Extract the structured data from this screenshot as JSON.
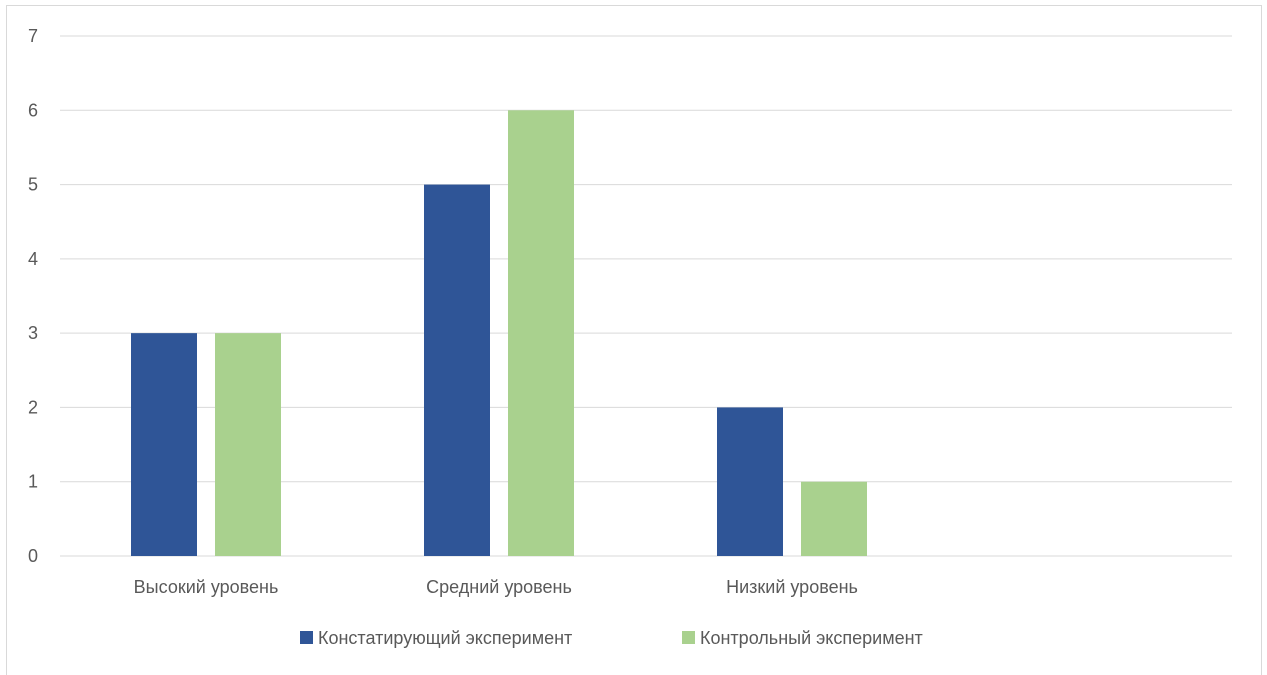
{
  "chart_data": {
    "type": "bar",
    "categories": [
      "Высокий уровень",
      "Средний уровень",
      "Низкий уровень"
    ],
    "series": [
      {
        "name": "Констатирующий эксперимент",
        "values": [
          3,
          5,
          2
        ],
        "color": "#2f5597"
      },
      {
        "name": "Контрольный эксперимент",
        "values": [
          3,
          6,
          1
        ],
        "color": "#a9d18e"
      }
    ],
    "ylim": [
      0,
      7
    ],
    "yticks": [
      0,
      1,
      2,
      3,
      4,
      5,
      6,
      7
    ],
    "grid": true,
    "legend_position": "bottom"
  }
}
